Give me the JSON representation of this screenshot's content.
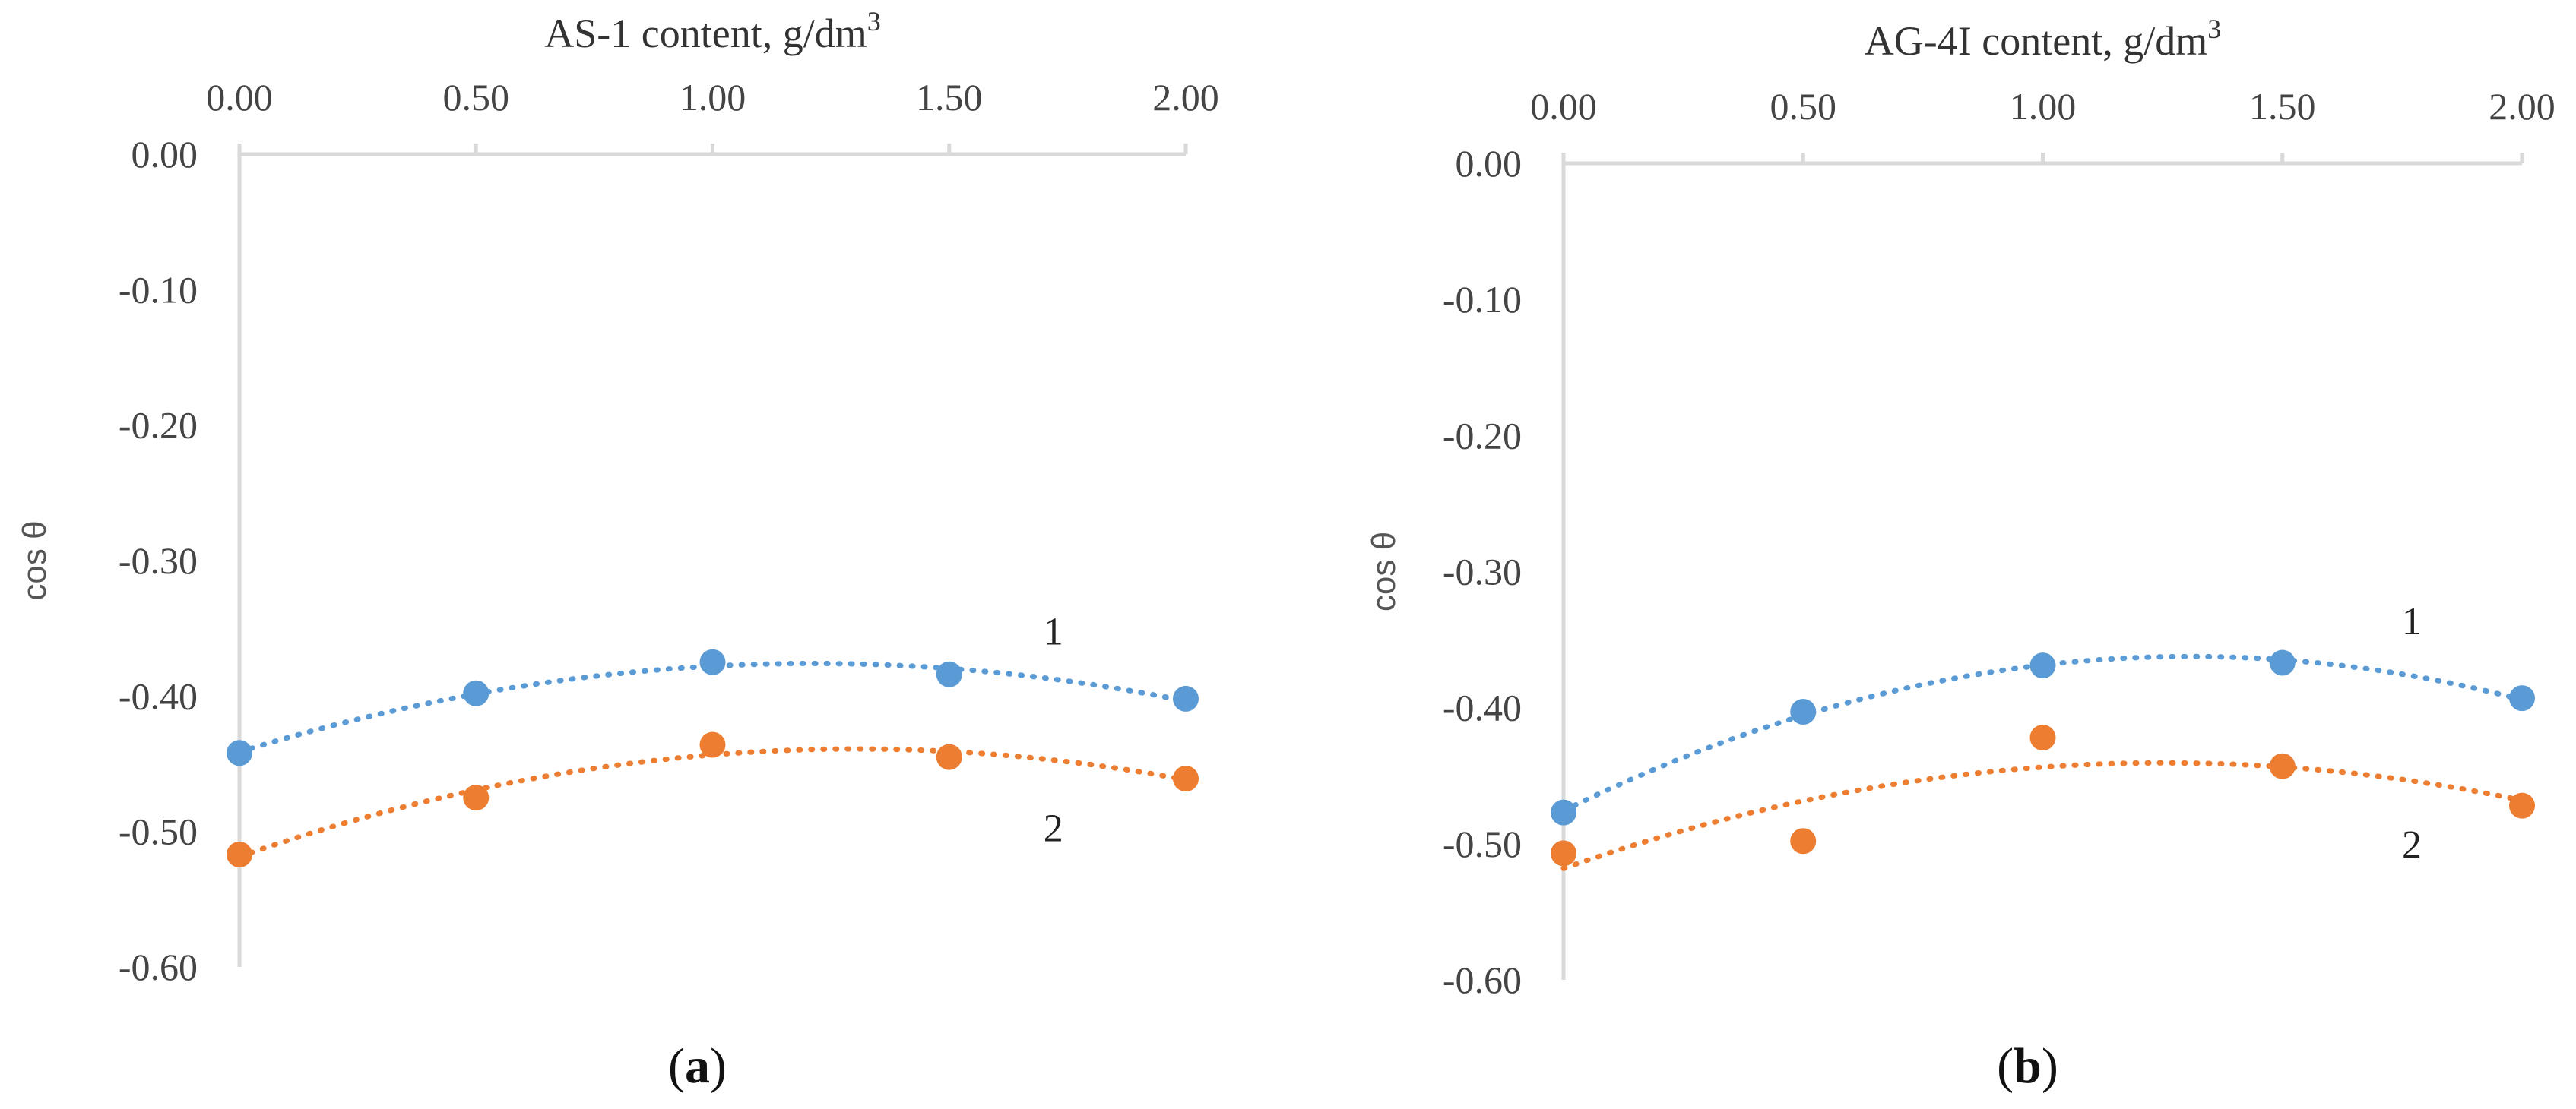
{
  "chart_data": [
    {
      "type": "scatter",
      "panel": "a",
      "caption_open": "(",
      "caption_letter": "a",
      "caption_close": ")",
      "xlabel": "AS-1 content, g/dm",
      "xlabel_sup": "3",
      "ylabel": "cos θ",
      "xlim": [
        0,
        2
      ],
      "ylim": [
        -0.6,
        0
      ],
      "x_ticks": [
        0,
        0.5,
        1,
        1.5,
        2
      ],
      "x_tick_labels": [
        "0.00",
        "0.50",
        "1.00",
        "1.50",
        "2.00"
      ],
      "y_ticks": [
        0,
        -0.1,
        -0.2,
        -0.3,
        -0.4,
        -0.5,
        -0.6
      ],
      "y_tick_labels": [
        "0.00",
        "-0.10",
        "-0.20",
        "-0.30",
        "-0.40",
        "-0.50",
        "-0.60"
      ],
      "x_axis_position": "top",
      "grid": false,
      "series": [
        {
          "name": "1",
          "color": "#5b9bd5",
          "x": [
            0,
            0.5,
            1,
            1.5,
            2
          ],
          "y": [
            -0.442,
            -0.398,
            -0.375,
            -0.384,
            -0.402
          ],
          "trendline": "polynomial",
          "label_at": [
            1.72,
            -0.352
          ]
        },
        {
          "name": "2",
          "color": "#ed7d31",
          "x": [
            0,
            0.5,
            1,
            1.5,
            2
          ],
          "y": [
            -0.517,
            -0.475,
            -0.436,
            -0.445,
            -0.461
          ],
          "trendline": "polynomial",
          "label_at": [
            1.72,
            -0.497
          ]
        }
      ]
    },
    {
      "type": "scatter",
      "panel": "b",
      "caption_open": "(",
      "caption_letter": "b",
      "caption_close": ")",
      "xlabel": "AG-4I content, g/dm",
      "xlabel_sup": "3",
      "ylabel": "cos θ",
      "xlim": [
        0,
        2
      ],
      "ylim": [
        -0.6,
        0
      ],
      "x_ticks": [
        0,
        0.5,
        1,
        1.5,
        2
      ],
      "x_tick_labels": [
        "0.00",
        "0.50",
        "1.00",
        "1.50",
        "2.00"
      ],
      "y_ticks": [
        0,
        -0.1,
        -0.2,
        -0.3,
        -0.4,
        -0.5,
        -0.6
      ],
      "y_tick_labels": [
        "0.00",
        "-0.10",
        "-0.20",
        "-0.30",
        "-0.40",
        "-0.50",
        "-0.60"
      ],
      "x_axis_position": "top",
      "grid": false,
      "series": [
        {
          "name": "1",
          "color": "#5b9bd5",
          "x": [
            0,
            0.5,
            1,
            1.5,
            2
          ],
          "y": [
            -0.477,
            -0.403,
            -0.369,
            -0.367,
            -0.393
          ],
          "trendline": "polynomial",
          "label_at": [
            1.77,
            -0.336
          ]
        },
        {
          "name": "2",
          "color": "#ed7d31",
          "x": [
            0,
            0.5,
            1,
            1.5,
            2
          ],
          "y": [
            -0.507,
            -0.498,
            -0.422,
            -0.443,
            -0.472
          ],
          "trendline": "polynomial",
          "label_at": [
            1.77,
            -0.5
          ]
        }
      ]
    }
  ]
}
